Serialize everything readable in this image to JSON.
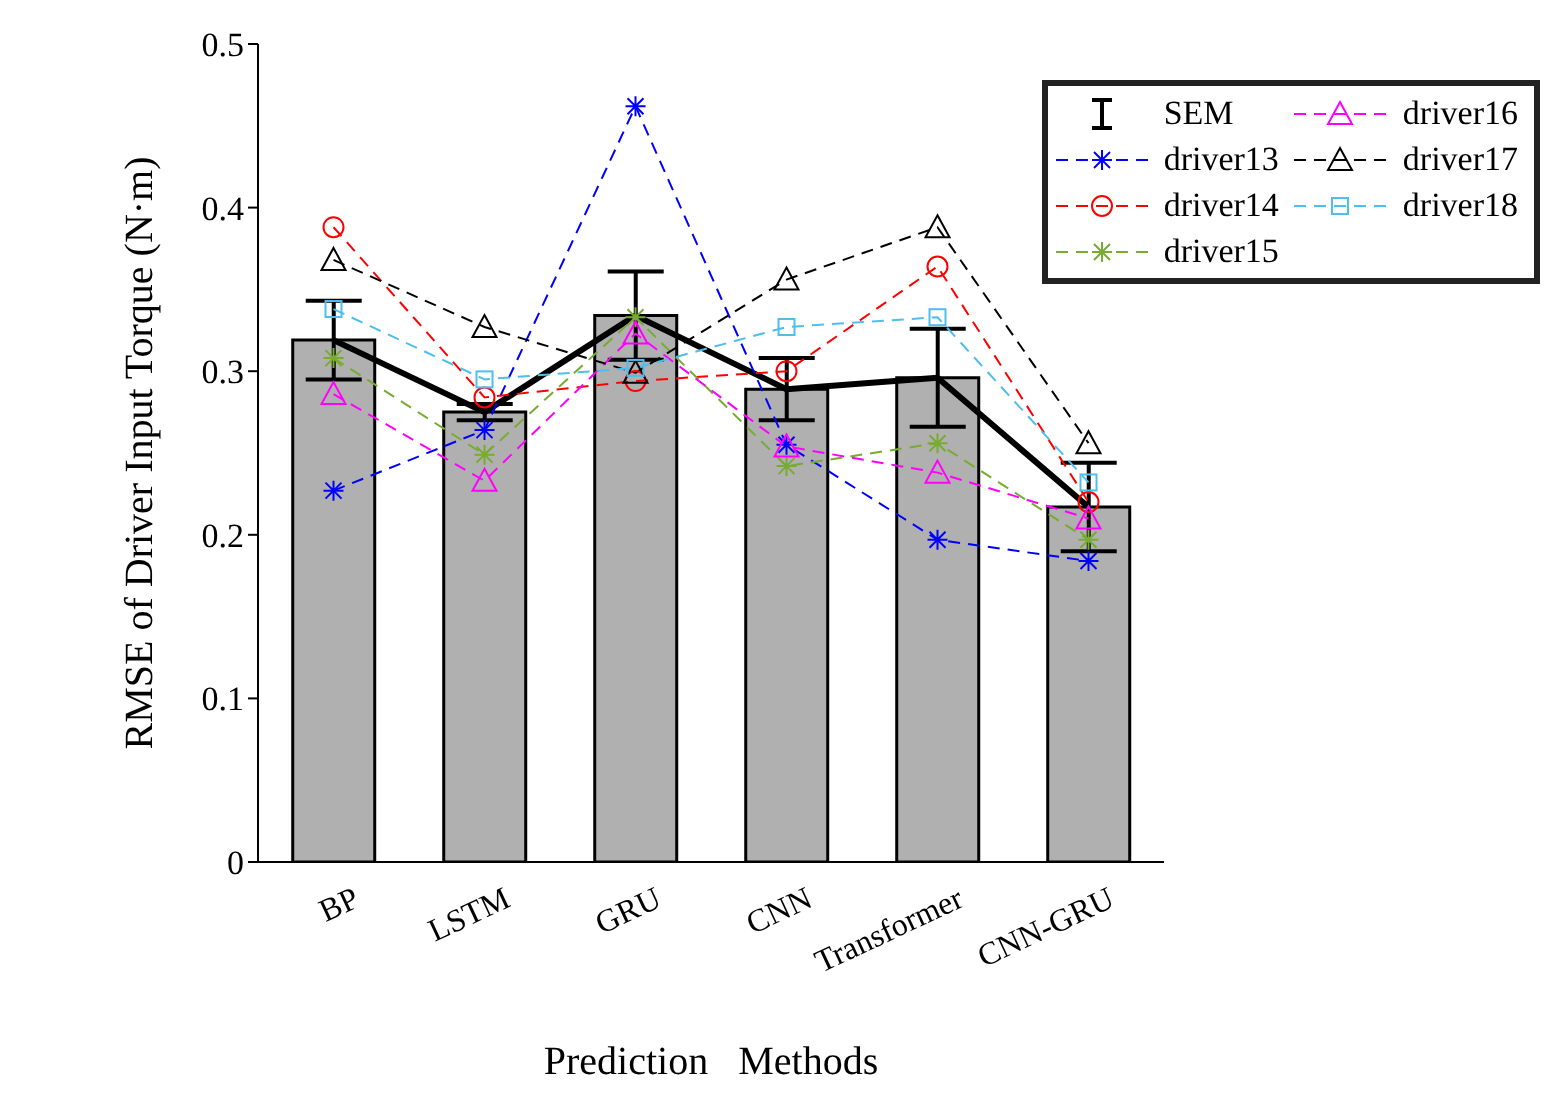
{
  "chart_data": {
    "type": "bar",
    "xlabel": "Prediction   Methods",
    "ylabel": "RMSE of Driver Input Torque (N·m)",
    "categories": [
      "BP",
      "LSTM",
      "GRU",
      "CNN",
      "Transformer",
      "CNN-GRU"
    ],
    "ylim": [
      0,
      0.5
    ],
    "yticks": [
      0,
      0.1,
      0.2,
      0.3,
      0.4,
      0.5
    ],
    "grid": false,
    "legend": "top right",
    "line_style": "dashed",
    "series": [
      {
        "name": "SEM",
        "color": "#b0b0b0",
        "values": [
          0.319,
          0.275,
          0.334,
          0.289,
          0.296,
          0.217
        ],
        "errors": [
          0.024,
          0.005,
          0.027,
          0.019,
          0.03,
          0.027
        ]
      },
      {
        "type": "line",
        "color": "#000000",
        "line_style": "solid",
        "marker": "none",
        "values": [
          0.319,
          0.275,
          0.334,
          0.289,
          0.296,
          0.217
        ]
      },
      {
        "type": "line",
        "name": "driver13",
        "color": "#0000ff",
        "marker": "cross",
        "values": [
          0.227,
          0.264,
          0.462,
          0.255,
          0.197,
          0.184
        ]
      },
      {
        "type": "line",
        "name": "driver14",
        "color": "#ff0000",
        "marker": "circle",
        "values": [
          0.388,
          0.284,
          0.294,
          0.3,
          0.364,
          0.22
        ]
      },
      {
        "type": "line",
        "name": "driver15",
        "color": "#77ac30",
        "marker": "cross",
        "values": [
          0.308,
          0.249,
          0.333,
          0.242,
          0.256,
          0.197
        ]
      },
      {
        "type": "line",
        "name": "driver16",
        "color": "#ff00ff",
        "marker": "triangle",
        "values": [
          0.286,
          0.233,
          0.323,
          0.254,
          0.238,
          0.21
        ]
      },
      {
        "type": "line",
        "name": "driver17",
        "color": "#000000",
        "marker": "triangle",
        "values": [
          0.368,
          0.327,
          0.299,
          0.356,
          0.388,
          0.256
        ]
      },
      {
        "type": "line",
        "name": "driver18",
        "color": "#4dbeee",
        "marker": "square",
        "values": [
          0.338,
          0.295,
          0.302,
          0.327,
          0.333,
          0.232
        ]
      }
    ]
  }
}
